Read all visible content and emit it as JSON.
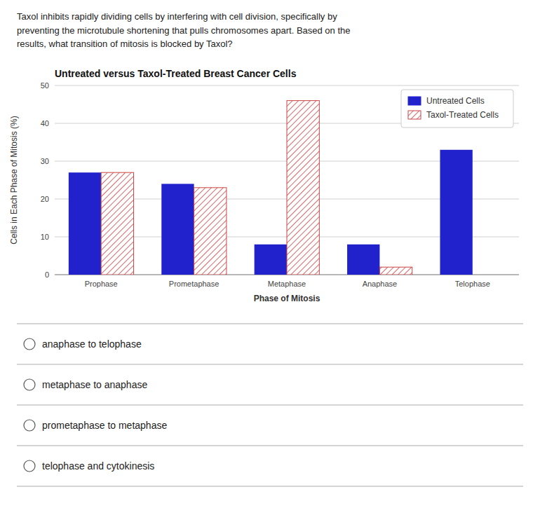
{
  "chart_data": {
    "type": "bar",
    "title": "Untreated versus Taxol-Treated Breast Cancer Cells",
    "x_label": "Phase of Mitosis",
    "y_label": "Cells in Each Phase of Mitosis (%)",
    "categories": [
      "Prophase",
      "Prometaphase",
      "Metaphase",
      "Anaphase",
      "Telophase"
    ],
    "series": [
      {
        "name": "Untreated Cells",
        "color": "#2222cc",
        "values": [
          27,
          24,
          8,
          8,
          33
        ]
      },
      {
        "name": "Taxol-Treated Cells",
        "color": "#cc4444",
        "values": [
          27,
          23,
          46,
          2,
          0
        ]
      }
    ],
    "ylim": [
      0,
      50
    ],
    "yticks": [
      0,
      10,
      20,
      30,
      40,
      50
    ],
    "grid": true,
    "legend": "upper right"
  },
  "question": "Taxol inhibits rapidly dividing cells by interfering with cell division, specifically by\npreventing the microtubule shortening that pulls chromosomes apart. Based on the\nresults, what transition of mitosis is blocked by Taxol?",
  "options": [
    "anaphase to telophase",
    "metaphase to anaphase",
    "prometaphase to metaphase",
    "telophase and cytokinesis"
  ]
}
